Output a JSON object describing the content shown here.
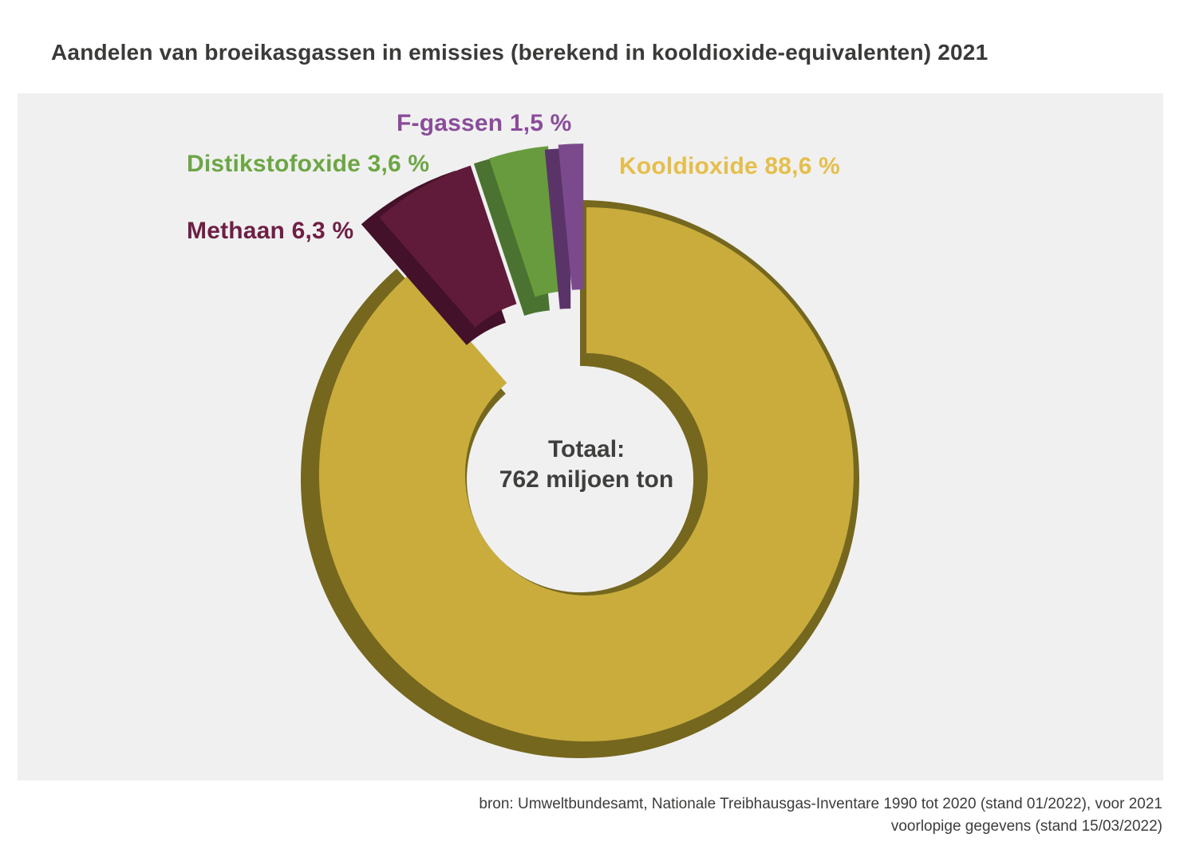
{
  "title": "Aandelen van broeikasgassen in emissies (berekend in kooldioxide-equivalenten) 2021",
  "chart_data": {
    "type": "pie",
    "variant": "3d-exploded-donut",
    "title": "Aandelen van broeikasgassen in emissies (berekend in kooldioxide-equivalenten) 2021",
    "year": "2021",
    "unit": "%",
    "legend_position": "around-chart",
    "center_label_line1": "Totaal:",
    "center_label_line2": "762 miljoen ton",
    "total_value": 762,
    "total_unit": "miljoen ton",
    "slices": [
      {
        "name": "Kooldioxide",
        "label": "Kooldioxide 88,6 %",
        "value_pct": 88.6,
        "color": "#C9AC3C",
        "color_dark": "#75671E",
        "label_color": "#E5BE4B",
        "exploded": false
      },
      {
        "name": "Methaan",
        "label": "Methaan 6,3 %",
        "value_pct": 6.3,
        "color": "#5F1B39",
        "color_dark": "#431129",
        "label_color": "#6E1F44",
        "exploded": true
      },
      {
        "name": "Distikstofoxide",
        "label": "Distikstofoxide 3,6 %",
        "value_pct": 3.6,
        "color": "#689B3D",
        "color_dark": "#4A7230",
        "label_color": "#6CA644",
        "exploded": true
      },
      {
        "name": "F-gassen",
        "label": "F-gassen 1,5 %",
        "value_pct": 1.5,
        "color": "#7B4A8C",
        "color_dark": "#5A3468",
        "label_color": "#8A4C9B",
        "exploded": true
      }
    ]
  },
  "source_line1": "bron: Umweltbundesamt, Nationale Treibhausgas-Inventare 1990 tot 2020 (stand 01/2022), voor 2021",
  "source_line2": "voorlopige gegevens (stand 15/03/2022)",
  "colors": {
    "page_background": "#FFFFFF",
    "panel_background": "#F0F0F0",
    "title_text": "#3A3A39",
    "center_text": "#3F3F3E",
    "source_text": "#3C3C3B"
  }
}
